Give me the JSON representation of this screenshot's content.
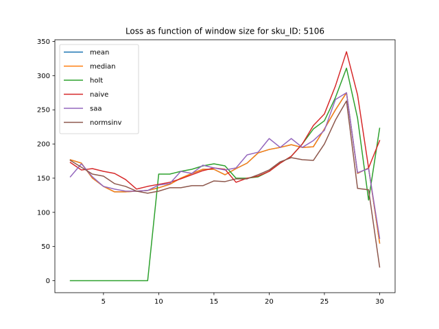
{
  "chart_data": {
    "type": "line",
    "title": "Loss as function of window size for sku_ID: 5106",
    "xlabel": "",
    "ylabel": "",
    "xlim": [
      0.6,
      31.4
    ],
    "ylim": [
      -17.5,
      352.5
    ],
    "xticks": [
      5,
      10,
      15,
      20,
      25,
      30
    ],
    "yticks": [
      0,
      50,
      100,
      150,
      200,
      250,
      300,
      350
    ],
    "grid": false,
    "legend_position": "top-left",
    "x": [
      2,
      3,
      4,
      5,
      6,
      7,
      8,
      9,
      10,
      11,
      12,
      13,
      14,
      15,
      16,
      17,
      18,
      19,
      20,
      21,
      22,
      23,
      24,
      25,
      26,
      27,
      28,
      29,
      30
    ],
    "series": [
      {
        "name": "mean",
        "color": "#1f77b4",
        "values": [
          177,
          172,
          150,
          138,
          130,
          130,
          131,
          132,
          136,
          141,
          150,
          157,
          163,
          163,
          155,
          164,
          172,
          187,
          192,
          195,
          199,
          195,
          196,
          222,
          250,
          275,
          157,
          165,
          55
        ]
      },
      {
        "name": "median",
        "color": "#ff7f0e",
        "values": [
          177,
          172,
          150,
          138,
          130,
          130,
          131,
          132,
          136,
          141,
          150,
          157,
          163,
          163,
          155,
          164,
          172,
          187,
          192,
          195,
          199,
          195,
          196,
          222,
          250,
          275,
          157,
          165,
          55
        ]
      },
      {
        "name": "holt",
        "color": "#2ca02c",
        "values": [
          0,
          0,
          0,
          0,
          0,
          0,
          0,
          0,
          156,
          156,
          160,
          163,
          168,
          171,
          168,
          150,
          150,
          152,
          160,
          172,
          182,
          200,
          222,
          234,
          268,
          311,
          238,
          118,
          223
        ]
      },
      {
        "name": "naive",
        "color": "#d62728",
        "values": [
          173,
          162,
          164,
          160,
          157,
          148,
          134,
          138,
          141,
          144,
          149,
          155,
          161,
          165,
          163,
          144,
          150,
          153,
          160,
          172,
          182,
          200,
          227,
          244,
          285,
          335,
          272,
          165,
          205
        ]
      },
      {
        "name": "saa",
        "color": "#9467bd",
        "values": [
          152,
          171,
          152,
          138,
          134,
          131,
          131,
          132,
          140,
          142,
          160,
          157,
          169,
          165,
          162,
          165,
          184,
          188,
          208,
          195,
          208,
          195,
          205,
          220,
          265,
          275,
          158,
          164,
          62
        ]
      },
      {
        "name": "normsinv",
        "color": "#8c564b",
        "values": [
          176,
          166,
          156,
          153,
          142,
          138,
          131,
          128,
          131,
          136,
          136,
          139,
          139,
          146,
          145,
          149,
          149,
          155,
          162,
          174,
          180,
          177,
          176,
          200,
          235,
          263,
          135,
          133,
          20
        ]
      }
    ]
  }
}
